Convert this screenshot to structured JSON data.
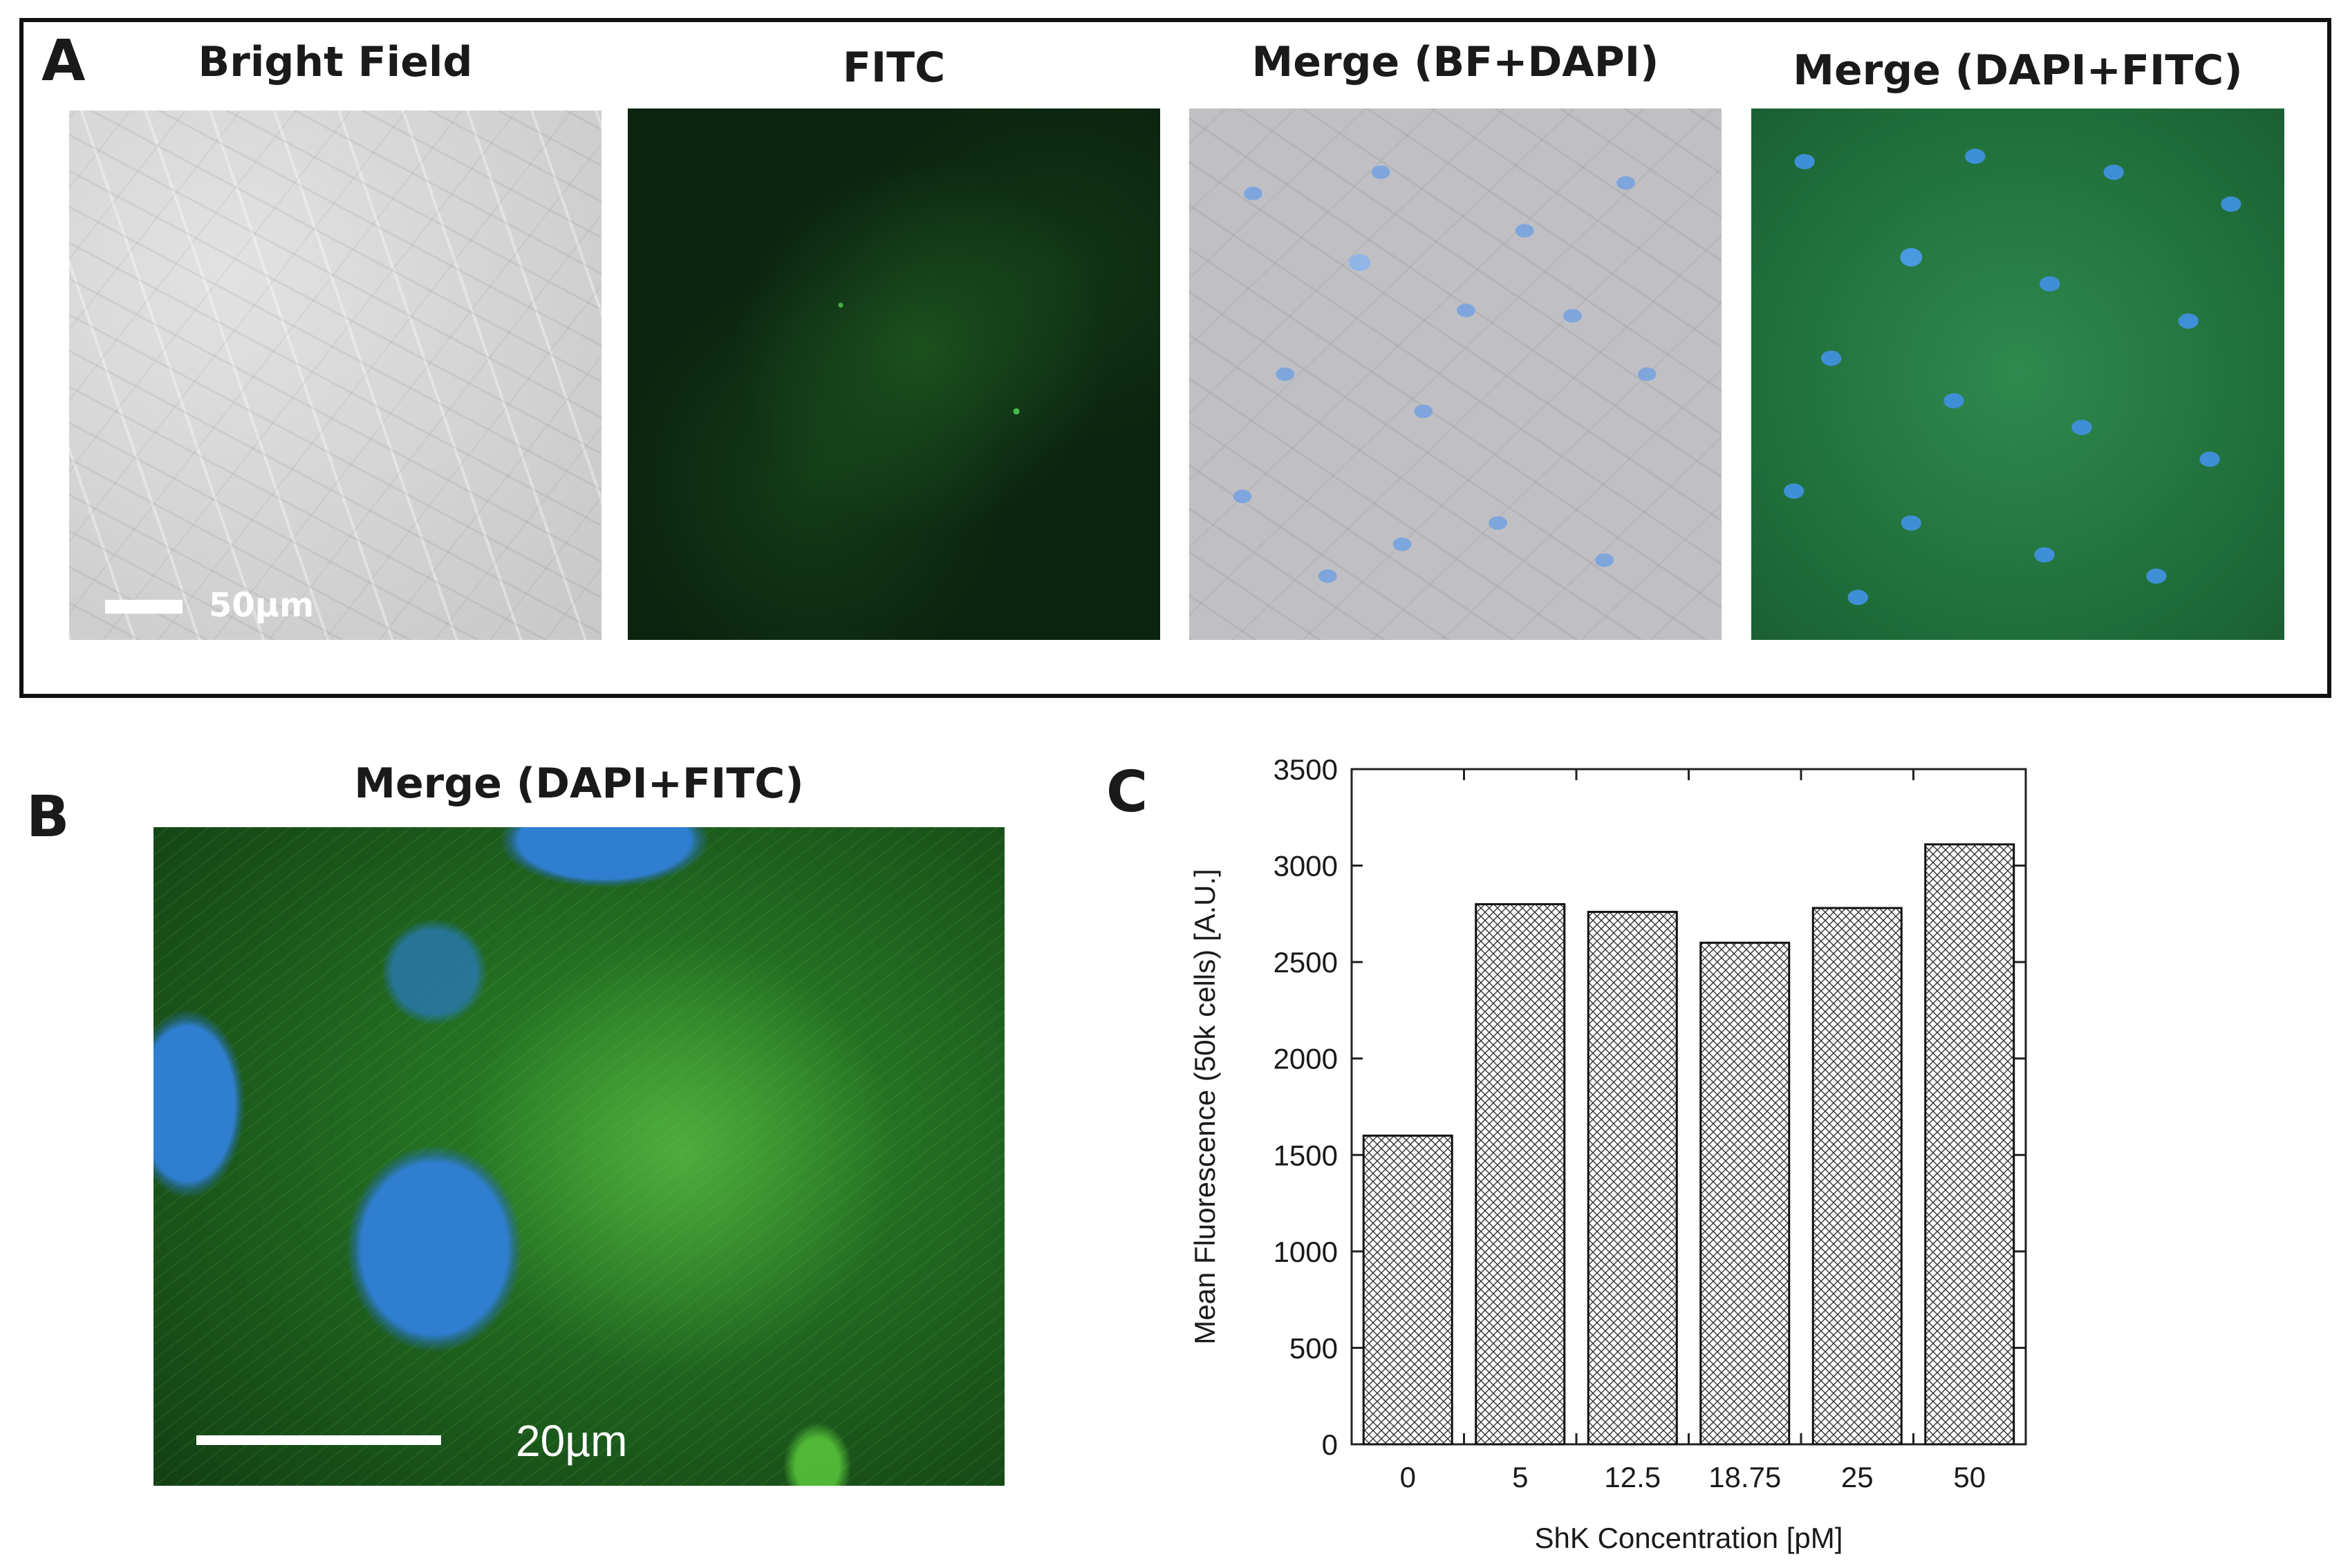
{
  "panel_a": {
    "letter": "A",
    "images": [
      {
        "title": "Bright Field",
        "scale_label": "50µm"
      },
      {
        "title": "FITC"
      },
      {
        "title": "Merge (BF+DAPI)"
      },
      {
        "title": "Merge (DAPI+FITC)"
      }
    ]
  },
  "panel_b": {
    "letter": "B",
    "title": "Merge (DAPI+FITC)",
    "scale_label": "20µm"
  },
  "panel_c": {
    "letter": "C"
  },
  "chart_data": {
    "type": "bar",
    "categories": [
      "0",
      "5",
      "12.5",
      "18.75",
      "25",
      "50"
    ],
    "values": [
      1600,
      2800,
      2760,
      2600,
      2780,
      3110
    ],
    "xlabel": "ShK Concentration [pM]",
    "ylabel": "Mean Fluorescence (50k cells) [A.U.]",
    "ylim": [
      0,
      3500
    ],
    "yticks": [
      0,
      500,
      1000,
      1500,
      2000,
      2500,
      3000,
      3500
    ],
    "bar_fill": "crosshatch",
    "bar_stroke": "#000000",
    "grid": false
  }
}
